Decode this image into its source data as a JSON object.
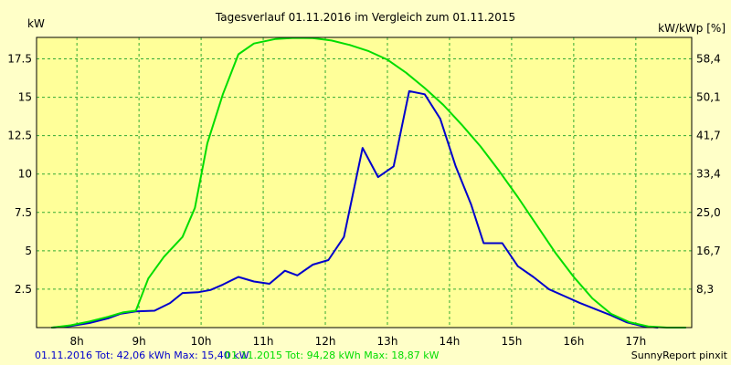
{
  "chart_data": {
    "type": "line",
    "title": "Tagesverlauf 01.11.2016 im Vergleich zum 01.11.2015",
    "ylabel_left": "kW",
    "ylabel_right": "kW/kWp [%]",
    "ylim": [
      0,
      18.9
    ],
    "xlim": [
      7.35,
      17.9
    ],
    "xticks": [
      {
        "x": 8,
        "label": "8h"
      },
      {
        "x": 9,
        "label": "9h"
      },
      {
        "x": 10,
        "label": "10h"
      },
      {
        "x": 11,
        "label": "11h"
      },
      {
        "x": 12,
        "label": "12h"
      },
      {
        "x": 13,
        "label": "13h"
      },
      {
        "x": 14,
        "label": "14h"
      },
      {
        "x": 15,
        "label": "15h"
      },
      {
        "x": 16,
        "label": "16h"
      },
      {
        "x": 17,
        "label": "17h"
      }
    ],
    "yticks_left": [
      {
        "y": 2.5,
        "label": "2.5"
      },
      {
        "y": 5,
        "label": "5"
      },
      {
        "y": 7.5,
        "label": "7.5"
      },
      {
        "y": 10,
        "label": "10"
      },
      {
        "y": 12.5,
        "label": "12.5"
      },
      {
        "y": 15,
        "label": "15"
      },
      {
        "y": 17.5,
        "label": "17.5"
      }
    ],
    "yticks_right": [
      {
        "y": 2.5,
        "label": "8,3"
      },
      {
        "y": 5,
        "label": "16,7"
      },
      {
        "y": 7.5,
        "label": "25,0"
      },
      {
        "y": 10,
        "label": "33,4"
      },
      {
        "y": 12.5,
        "label": "41,7"
      },
      {
        "y": 15,
        "label": "50,1"
      },
      {
        "y": 17.5,
        "label": "58,4"
      }
    ],
    "grid": true,
    "series": [
      {
        "name": "01.11.2016",
        "color": "#0000CC",
        "points": [
          [
            7.6,
            0
          ],
          [
            7.9,
            0.1
          ],
          [
            8.2,
            0.3
          ],
          [
            8.5,
            0.6
          ],
          [
            8.7,
            0.9
          ],
          [
            8.95,
            1.05
          ],
          [
            9.25,
            1.1
          ],
          [
            9.5,
            1.6
          ],
          [
            9.7,
            2.25
          ],
          [
            9.95,
            2.3
          ],
          [
            10.15,
            2.45
          ],
          [
            10.35,
            2.8
          ],
          [
            10.6,
            3.3
          ],
          [
            10.85,
            3.0
          ],
          [
            11.1,
            2.85
          ],
          [
            11.35,
            3.7
          ],
          [
            11.55,
            3.4
          ],
          [
            11.8,
            4.1
          ],
          [
            12.05,
            4.4
          ],
          [
            12.3,
            5.9
          ],
          [
            12.6,
            11.7
          ],
          [
            12.85,
            9.8
          ],
          [
            13.1,
            10.5
          ],
          [
            13.35,
            15.4
          ],
          [
            13.6,
            15.2
          ],
          [
            13.85,
            13.6
          ],
          [
            14.1,
            10.5
          ],
          [
            14.35,
            8.0
          ],
          [
            14.55,
            5.5
          ],
          [
            14.85,
            5.5
          ],
          [
            15.1,
            4.0
          ],
          [
            15.35,
            3.3
          ],
          [
            15.6,
            2.5
          ],
          [
            15.85,
            2.05
          ],
          [
            16.1,
            1.6
          ],
          [
            16.35,
            1.2
          ],
          [
            16.6,
            0.8
          ],
          [
            16.85,
            0.35
          ],
          [
            17.1,
            0.1
          ],
          [
            17.35,
            0
          ]
        ]
      },
      {
        "name": "01.11.2015",
        "color": "#00DD00",
        "points": [
          [
            7.6,
            0
          ],
          [
            7.9,
            0.15
          ],
          [
            8.2,
            0.4
          ],
          [
            8.5,
            0.7
          ],
          [
            8.75,
            1.0
          ],
          [
            8.95,
            1.1
          ],
          [
            9.15,
            3.2
          ],
          [
            9.4,
            4.6
          ],
          [
            9.7,
            5.9
          ],
          [
            9.9,
            7.8
          ],
          [
            10.1,
            12.0
          ],
          [
            10.35,
            15.2
          ],
          [
            10.6,
            17.8
          ],
          [
            10.85,
            18.5
          ],
          [
            11.2,
            18.8
          ],
          [
            11.5,
            18.87
          ],
          [
            11.8,
            18.85
          ],
          [
            12.1,
            18.7
          ],
          [
            12.4,
            18.4
          ],
          [
            12.7,
            18.0
          ],
          [
            13.0,
            17.45
          ],
          [
            13.3,
            16.6
          ],
          [
            13.6,
            15.6
          ],
          [
            13.9,
            14.5
          ],
          [
            14.2,
            13.2
          ],
          [
            14.5,
            11.8
          ],
          [
            14.8,
            10.2
          ],
          [
            15.1,
            8.5
          ],
          [
            15.4,
            6.7
          ],
          [
            15.7,
            4.9
          ],
          [
            16.0,
            3.3
          ],
          [
            16.3,
            1.9
          ],
          [
            16.6,
            0.9
          ],
          [
            16.9,
            0.35
          ],
          [
            17.2,
            0.08
          ],
          [
            17.5,
            0
          ],
          [
            17.8,
            0
          ]
        ]
      }
    ]
  },
  "footer": {
    "series1_text": "01.11.2016 Tot: 42,06 kWh Max: 15,40 kW",
    "series2_text": "01.11.2015 Tot: 94,28 kWh Max: 18,87 kW",
    "credit": "SunnyReport pinxit"
  },
  "colors": {
    "background": "#FFFFC8",
    "plot_background": "#FFFF99",
    "grid": "#33AA33",
    "series1": "#0000CC",
    "series2": "#00DD00"
  }
}
